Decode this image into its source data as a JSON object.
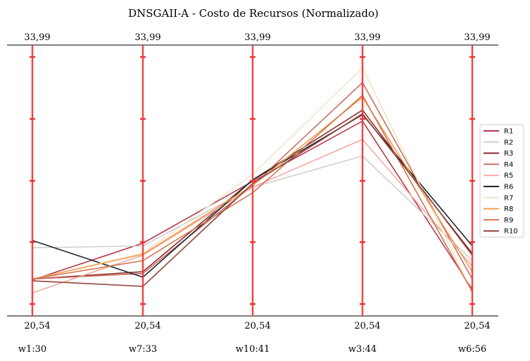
{
  "chart_data": {
    "type": "line",
    "title": "DNSGAII-A - Costo de Recursos (Normalizado)",
    "axes": [
      {
        "name": "w1:30",
        "top_label": "33,99",
        "bottom_label": "20,54"
      },
      {
        "name": "w7:33",
        "top_label": "33,99",
        "bottom_label": "20,54"
      },
      {
        "name": "w10:41",
        "top_label": "33,99",
        "bottom_label": "20,54"
      },
      {
        "name": "w3:44",
        "top_label": "33,99",
        "bottom_label": "20,54"
      },
      {
        "name": "w6:56",
        "top_label": "33,99",
        "bottom_label": "20,54"
      }
    ],
    "ylim": [
      20.54,
      33.99
    ],
    "axis_color": "#ee3333",
    "legend_position": "right",
    "series": [
      {
        "name": "R1",
        "color": "#b5364c",
        "values": [
          21.85,
          23.85,
          27.22,
          30.5,
          21.35
        ]
      },
      {
        "name": "R2",
        "color": "#cfcfcf",
        "values": [
          23.6,
          23.7,
          26.9,
          28.6,
          22.9
        ]
      },
      {
        "name": "R3",
        "color": "#8b2e2a",
        "values": [
          21.9,
          22.3,
          27.3,
          31.1,
          23.2
        ]
      },
      {
        "name": "R4",
        "color": "#c96f64",
        "values": [
          21.9,
          22.2,
          27.0,
          32.6,
          21.9
        ]
      },
      {
        "name": "R5",
        "color": "#f3aba0",
        "values": [
          21.15,
          23.2,
          26.9,
          29.5,
          22.6
        ]
      },
      {
        "name": "R6",
        "color": "#1d2430",
        "values": [
          24.0,
          22.0,
          27.3,
          30.85,
          23.7
        ]
      },
      {
        "name": "R7",
        "color": "#f1e4c8",
        "values": [
          21.9,
          23.3,
          27.6,
          33.4,
          21.2
        ]
      },
      {
        "name": "R8",
        "color": "#f0a050",
        "values": [
          21.9,
          23.25,
          27.0,
          31.8,
          22.3
        ]
      },
      {
        "name": "R9",
        "color": "#d2744d",
        "values": [
          21.9,
          22.9,
          26.6,
          31.9,
          21.2
        ]
      },
      {
        "name": "R10",
        "color": "#944338",
        "values": [
          21.8,
          21.5,
          27.1,
          30.9,
          23.3
        ]
      }
    ]
  }
}
